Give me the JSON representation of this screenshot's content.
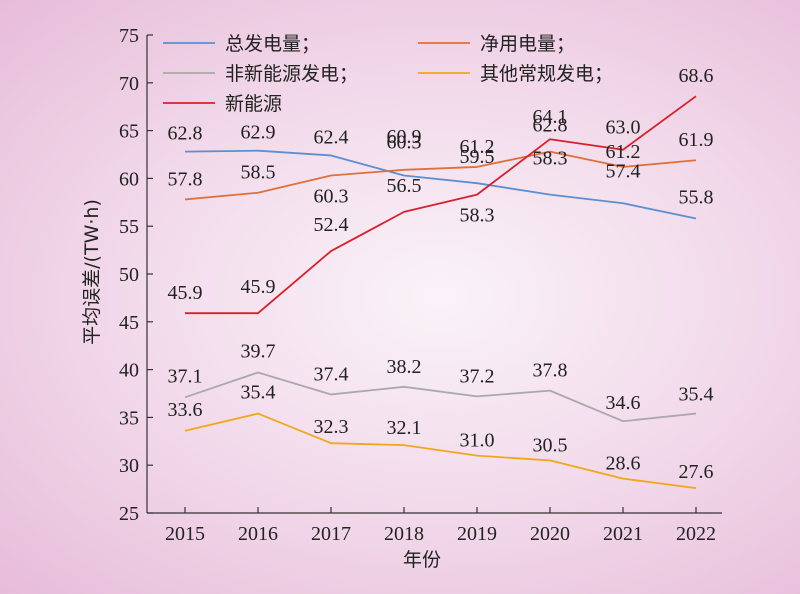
{
  "chart_data": {
    "type": "line",
    "x": [
      "2015",
      "2016",
      "2017",
      "2018",
      "2019",
      "2020",
      "2021",
      "2022"
    ],
    "xlabel": "年份",
    "ylabel": "平均误差/(TW·h)",
    "ylim": [
      25,
      75
    ],
    "yticks": [
      25,
      30,
      35,
      40,
      45,
      50,
      55,
      60,
      65,
      70,
      75
    ],
    "grid": false,
    "legend_position": "top-left",
    "series": [
      {
        "name": "总发电量；",
        "color": "#5b8fd0",
        "values": [
          62.8,
          62.9,
          62.4,
          60.3,
          59.5,
          58.3,
          57.4,
          55.8
        ]
      },
      {
        "name": "净用电量；",
        "color": "#e0703a",
        "values": [
          57.8,
          58.5,
          60.3,
          60.9,
          61.2,
          62.8,
          61.2,
          61.9
        ]
      },
      {
        "name": "非新能源发电；",
        "color": "#a9a9a9",
        "values": [
          37.1,
          39.7,
          37.4,
          38.2,
          37.2,
          37.8,
          34.6,
          35.4
        ]
      },
      {
        "name": "其他常规发电；",
        "color": "#f0a818",
        "values": [
          33.6,
          35.4,
          32.3,
          32.1,
          31.0,
          30.5,
          28.6,
          27.6
        ]
      },
      {
        "name": "新能源",
        "color": "#d8202a",
        "values": [
          45.9,
          45.9,
          52.4,
          56.5,
          58.3,
          64.1,
          63.0,
          68.6
        ]
      }
    ]
  }
}
